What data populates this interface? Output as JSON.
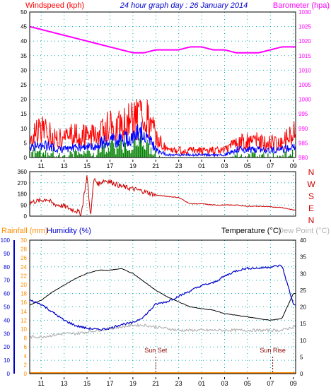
{
  "header": {
    "windspeed_label": "Windspeed (kph)",
    "title": "24 hour graph day : 26 January 2014",
    "barometer_label": "Barometer (hpa)"
  },
  "lower_header": {
    "rainfall_label": "Rainfall (mm)",
    "humidity_label": "Humidity (%)",
    "temperature_label": "Temperature (°C)",
    "dewpoint_label": "Dew Point (°C)"
  },
  "x_ticks": [
    "11",
    "13",
    "15",
    "17",
    "19",
    "21",
    "23",
    "01",
    "03",
    "05",
    "07",
    "09"
  ],
  "colors": {
    "wind_avg": "#0000ff",
    "wind_gust": "#ff0000",
    "wind_avg_fill": "#008000",
    "barometer": "#ff00ff",
    "direction": "#cc0000",
    "humidity": "#0000cc",
    "temperature": "#000000",
    "dewpoint": "#b4b4b4",
    "rainfall": "#ff8c00",
    "grid": "#00aaaa"
  },
  "annotations": {
    "sunset": "Sun Set",
    "sunrise": "Sun Rise"
  },
  "chart_data": [
    {
      "type": "line",
      "title": "24 hour graph day : 26 January 2014",
      "xlabel": "",
      "ylabel": "Windspeed (kph)",
      "y2label": "Barometer (hpa)",
      "grid": true,
      "x": [
        10,
        11,
        12,
        13,
        14,
        15,
        16,
        17,
        18,
        19,
        20,
        21,
        22,
        23,
        24,
        25,
        26,
        27,
        28,
        29,
        30,
        31,
        32,
        33
      ],
      "series": [
        {
          "name": "Windspeed (kph)",
          "axis": "left",
          "values": [
            8,
            12,
            9,
            8,
            10,
            9,
            10,
            14,
            13,
            16,
            19,
            9,
            3,
            3,
            3,
            3,
            3,
            3,
            6,
            7,
            7,
            6,
            7,
            10
          ]
        },
        {
          "name": "",
          "axis": "left",
          "values": [
            4,
            5,
            4,
            3,
            4,
            4,
            5,
            7,
            7,
            8,
            10,
            3,
            1,
            1,
            1,
            1,
            1,
            1,
            3,
            3,
            3,
            3,
            3,
            4
          ]
        },
        {
          "name": "Barometer (hpa)",
          "axis": "right",
          "values": [
            1025,
            1024,
            1023,
            1022,
            1021,
            1020,
            1019,
            1018,
            1017,
            1016,
            1016,
            1017,
            1017,
            1017,
            1018,
            1018,
            1017,
            1017,
            1016,
            1016,
            1016,
            1017,
            1018,
            1018
          ]
        }
      ],
      "ylim": [
        0,
        50
      ],
      "y2lim": [
        980,
        1030
      ],
      "y_ticks": [
        0,
        5,
        10,
        15,
        20,
        25,
        30,
        35,
        40,
        45,
        50
      ],
      "y2_ticks": [
        980,
        985,
        990,
        995,
        1000,
        1005,
        1010,
        1015,
        1020,
        1025,
        1030
      ]
    },
    {
      "type": "line",
      "title": "",
      "ylabel": "",
      "grid": true,
      "x": [
        10,
        10.5,
        11,
        11.5,
        12,
        12.5,
        13,
        13.5,
        14,
        14.5,
        15,
        15.3,
        15.6,
        16,
        16.5,
        17,
        17.5,
        18,
        19,
        20,
        21,
        22,
        23,
        24,
        25,
        26,
        27,
        28,
        29,
        30,
        31,
        32,
        33
      ],
      "series": [
        {
          "name": "",
          "values": [
            110,
            120,
            125,
            140,
            100,
            90,
            80,
            60,
            45,
            20,
            330,
            0,
            300,
            260,
            290,
            280,
            260,
            240,
            220,
            200,
            170,
            160,
            150,
            100,
            100,
            90,
            90,
            90,
            80,
            80,
            75,
            70,
            50
          ]
        }
      ],
      "ylim": [
        0,
        360
      ],
      "y_ticks": [
        0,
        90,
        180,
        270,
        360
      ],
      "direction_labels": [
        "N",
        "W",
        "S",
        "E",
        "N"
      ]
    },
    {
      "type": "line",
      "title": "",
      "ylabel": "Humidity (%)",
      "y2label": "Temperature (°C)",
      "grid": true,
      "x": [
        10,
        11,
        12,
        13,
        14,
        15,
        16,
        17,
        18,
        19,
        20,
        21,
        22,
        23,
        24,
        25,
        26,
        27,
        28,
        29,
        30,
        31,
        32,
        33
      ],
      "series": [
        {
          "name": "Humidity (%)",
          "axis": "left",
          "values": [
            55,
            52,
            46,
            40,
            36,
            34,
            33,
            34,
            37,
            38,
            43,
            52,
            54,
            58,
            62,
            66,
            68,
            73,
            77,
            79,
            79,
            80,
            81,
            52
          ]
        },
        {
          "name": "Temperature (°C)",
          "axis": "right",
          "values": [
            20.5,
            22,
            24.5,
            26.5,
            28.5,
            30,
            31,
            31,
            31.5,
            30,
            27.5,
            25,
            23,
            21.5,
            20,
            19.5,
            19,
            18,
            17.5,
            17,
            16.5,
            16,
            16.5,
            24
          ]
        },
        {
          "name": "Dew Point (°C)",
          "axis": "right",
          "values": [
            11,
            11,
            11.5,
            12,
            12,
            12.5,
            13,
            13.5,
            14,
            14.5,
            14.5,
            14,
            13.5,
            13,
            13,
            13,
            13,
            13,
            13,
            13,
            13,
            13,
            13,
            14
          ]
        },
        {
          "name": "Rainfall (mm)",
          "axis": "left2",
          "values": [
            0,
            0,
            0,
            0,
            0,
            0,
            0,
            0,
            0,
            0,
            0,
            0,
            0,
            0,
            0,
            0,
            0,
            0,
            0,
            0,
            0,
            0,
            0,
            0
          ]
        }
      ],
      "ylim": [
        0,
        100
      ],
      "y_ticks": [
        0,
        10,
        20,
        30,
        40,
        50,
        60,
        70,
        80,
        90,
        100
      ],
      "y_rain_ticks": [
        0,
        2,
        4,
        6,
        8,
        10,
        12,
        14,
        16,
        18,
        20,
        22,
        24,
        26,
        28,
        30
      ],
      "y2lim": [
        0,
        40
      ],
      "y2_ticks": [
        0,
        5,
        10,
        15,
        20,
        25,
        30,
        35,
        40
      ],
      "markers": [
        {
          "label": "Sun Set",
          "x": 21
        },
        {
          "label": "Sun Rise",
          "x": 31.2
        }
      ]
    }
  ]
}
